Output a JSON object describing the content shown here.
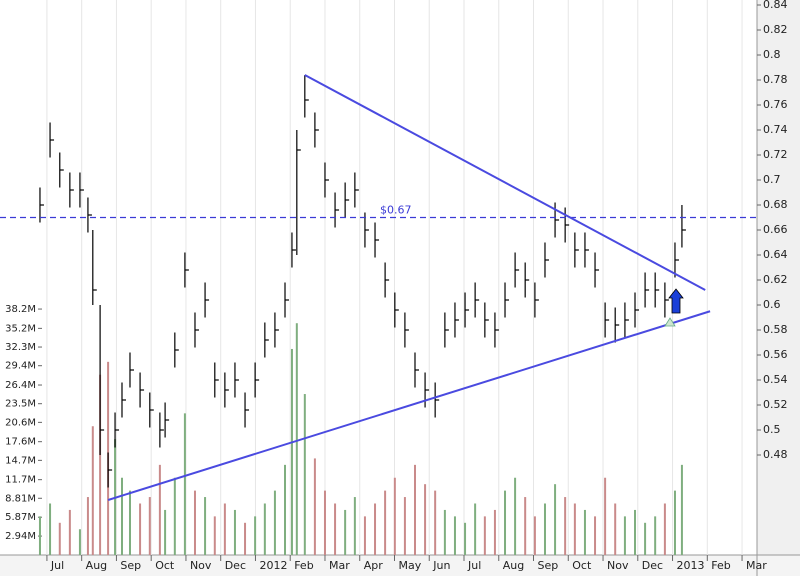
{
  "chart_data": {
    "type": "ohlc",
    "x": [
      -0.2,
      0.09,
      0.37,
      0.66,
      0.95,
      1.18,
      1.32,
      1.53,
      1.76,
      1.96,
      2.16,
      2.39,
      2.68,
      2.96,
      3.25,
      3.4,
      3.68,
      3.97,
      4.26,
      4.55,
      4.83,
      5.12,
      5.41,
      5.7,
      5.99,
      6.27,
      6.56,
      6.85,
      7.05,
      7.19,
      7.42,
      7.71,
      8.0,
      8.29,
      8.58,
      8.86,
      9.15,
      9.44,
      9.73,
      10.01,
      10.3,
      10.59,
      10.88,
      11.17,
      11.45,
      11.74,
      12.03,
      12.32,
      12.6,
      12.89,
      13.18,
      13.47,
      13.76,
      14.04,
      14.33,
      14.62,
      14.91,
      15.19,
      15.48,
      15.77,
      16.06,
      16.35,
      16.63,
      16.92,
      17.21,
      17.5,
      17.78,
      18.07,
      18.27
    ],
    "high": [
      0.694,
      0.746,
      0.722,
      0.706,
      0.706,
      0.686,
      0.66,
      0.6,
      0.482,
      0.514,
      0.538,
      0.562,
      0.546,
      0.53,
      0.514,
      0.522,
      0.578,
      0.642,
      0.594,
      0.618,
      0.554,
      0.546,
      0.554,
      0.53,
      0.554,
      0.586,
      0.594,
      0.618,
      0.658,
      0.74,
      0.784,
      0.754,
      0.714,
      0.69,
      0.698,
      0.706,
      0.674,
      0.666,
      0.634,
      0.61,
      0.594,
      0.562,
      0.546,
      0.538,
      0.594,
      0.602,
      0.61,
      0.618,
      0.602,
      0.594,
      0.618,
      0.642,
      0.634,
      0.618,
      0.65,
      0.682,
      0.678,
      0.658,
      0.658,
      0.642,
      0.602,
      0.598,
      0.602,
      0.61,
      0.626,
      0.626,
      0.618,
      0.65,
      0.68
    ],
    "low": [
      0.666,
      0.718,
      0.694,
      0.678,
      0.678,
      0.658,
      0.6,
      0.48,
      0.454,
      0.486,
      0.51,
      0.534,
      0.518,
      0.502,
      0.486,
      0.494,
      0.55,
      0.614,
      0.566,
      0.59,
      0.526,
      0.518,
      0.526,
      0.502,
      0.526,
      0.558,
      0.566,
      0.59,
      0.63,
      0.64,
      0.75,
      0.726,
      0.686,
      0.662,
      0.67,
      0.678,
      0.646,
      0.638,
      0.606,
      0.582,
      0.566,
      0.534,
      0.518,
      0.51,
      0.566,
      0.574,
      0.582,
      0.59,
      0.574,
      0.566,
      0.59,
      0.614,
      0.606,
      0.59,
      0.622,
      0.654,
      0.65,
      0.63,
      0.63,
      0.614,
      0.574,
      0.57,
      0.574,
      0.582,
      0.598,
      0.598,
      0.59,
      0.622,
      0.646
    ],
    "close": [
      0.68,
      0.732,
      0.708,
      0.692,
      0.692,
      0.672,
      0.612,
      0.5,
      0.468,
      0.5,
      0.524,
      0.548,
      0.532,
      0.516,
      0.5,
      0.508,
      0.564,
      0.628,
      0.58,
      0.604,
      0.54,
      0.532,
      0.54,
      0.516,
      0.54,
      0.572,
      0.58,
      0.604,
      0.644,
      0.724,
      0.764,
      0.74,
      0.7,
      0.676,
      0.684,
      0.692,
      0.66,
      0.652,
      0.62,
      0.596,
      0.58,
      0.548,
      0.532,
      0.524,
      0.58,
      0.588,
      0.596,
      0.604,
      0.588,
      0.58,
      0.604,
      0.628,
      0.62,
      0.604,
      0.636,
      0.668,
      0.664,
      0.644,
      0.644,
      0.628,
      0.588,
      0.584,
      0.588,
      0.596,
      0.612,
      0.612,
      0.604,
      0.636,
      0.66
    ],
    "volume": [
      6,
      8,
      5,
      7,
      4,
      9,
      20,
      28,
      30,
      18,
      12,
      10,
      8,
      9,
      14,
      7,
      12,
      22,
      10,
      9,
      6,
      8,
      7,
      5,
      6,
      8,
      10,
      14,
      32,
      36,
      25,
      15,
      10,
      8,
      7,
      9,
      6,
      8,
      10,
      12,
      9,
      14,
      11,
      10,
      7,
      6,
      5,
      8,
      6,
      7,
      10,
      12,
      9,
      6,
      8,
      11,
      9,
      8,
      7,
      6,
      12,
      8,
      6,
      7,
      5,
      6,
      8,
      10,
      14
    ],
    "color": "#000000",
    "up_color": "#7fae7f",
    "down_color": "#c98a8a",
    "xlim": [
      -1.35,
      20.43
    ],
    "xticks": [
      {
        "value": 0,
        "label": "Jul"
      },
      {
        "value": 1,
        "label": "Aug"
      },
      {
        "value": 2,
        "label": "Sep"
      },
      {
        "value": 3,
        "label": "Oct"
      },
      {
        "value": 4,
        "label": "Nov"
      },
      {
        "value": 5,
        "label": "Dec"
      },
      {
        "value": 6,
        "label": "2012"
      },
      {
        "value": 7,
        "label": "Feb"
      },
      {
        "value": 8,
        "label": "Mar"
      },
      {
        "value": 9,
        "label": "Apr"
      },
      {
        "value": 10,
        "label": "May"
      },
      {
        "value": 11,
        "label": "Jun"
      },
      {
        "value": 12,
        "label": "Jul"
      },
      {
        "value": 13,
        "label": "Aug"
      },
      {
        "value": 14,
        "label": "Sep"
      },
      {
        "value": 15,
        "label": "Oct"
      },
      {
        "value": 16,
        "label": "Nov"
      },
      {
        "value": 17,
        "label": "Dec"
      },
      {
        "value": 18,
        "label": "2013"
      },
      {
        "value": 19,
        "label": "Feb"
      },
      {
        "value": 20,
        "label": "Mar"
      }
    ],
    "ylim": [
      0.4,
      0.844
    ],
    "yticks": [
      0.48,
      0.5,
      0.52,
      0.54,
      0.56,
      0.58,
      0.6,
      0.62,
      0.64,
      0.66,
      0.68,
      0.7,
      0.72,
      0.74,
      0.76,
      0.78,
      0.8,
      0.82,
      0.84
    ],
    "y2lim": [
      0,
      86.2
    ],
    "y2ticks": [
      {
        "value": 2.94,
        "label": "2.94M"
      },
      {
        "value": 5.87,
        "label": "5.87M"
      },
      {
        "value": 8.81,
        "label": "8.81M"
      },
      {
        "value": 11.7,
        "label": "11.7M"
      },
      {
        "value": 14.7,
        "label": "14.7M"
      },
      {
        "value": 17.6,
        "label": "17.6M"
      },
      {
        "value": 20.6,
        "label": "20.6M"
      },
      {
        "value": 23.5,
        "label": "23.5M"
      },
      {
        "value": 26.4,
        "label": "26.4M"
      },
      {
        "value": 29.4,
        "label": "29.4M"
      },
      {
        "value": 32.3,
        "label": "32.3M"
      },
      {
        "value": 35.2,
        "label": "35.2M"
      },
      {
        "value": 38.2,
        "label": "38.2M"
      }
    ],
    "grid": "x",
    "hline": {
      "value": 0.67,
      "label": "$0.67",
      "color": "#3b3bd6"
    },
    "trendlines": [
      {
        "x": [
          7.42,
          18.94
        ],
        "y": [
          0.784,
          0.612
        ],
        "color": "#4a4ae0"
      },
      {
        "x": [
          1.76,
          19.08
        ],
        "y": [
          0.444,
          0.595
        ],
        "color": "#4a4ae0"
      }
    ]
  }
}
